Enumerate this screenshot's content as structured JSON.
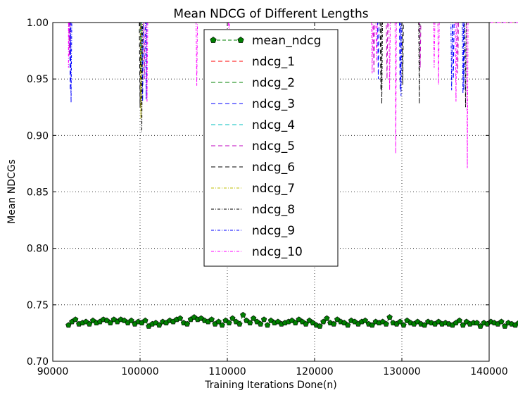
{
  "chart_data": {
    "type": "line",
    "title": "Mean NDCG of Different Lengths",
    "xlabel": "Training Iterations Done(n)",
    "ylabel": "Mean NDCGs",
    "xlim": [
      90000,
      140000
    ],
    "ylim": [
      0.7,
      1.0
    ],
    "x_ticks": [
      90000,
      100000,
      110000,
      120000,
      130000,
      140000
    ],
    "x_tick_labels": [
      "90000",
      "100000",
      "110000",
      "120000",
      "130000",
      "140000"
    ],
    "y_ticks": [
      0.7,
      0.75,
      0.8,
      0.85,
      0.9,
      0.95,
      1.0
    ],
    "y_tick_labels": [
      "0.70",
      "0.75",
      "0.80",
      "0.85",
      "0.90",
      "0.95",
      "1.00"
    ],
    "grid": true,
    "legend_position": "upper-center",
    "mean_ndcg": {
      "name": "mean_ndcg",
      "color": "#007f00",
      "x_start": 91800,
      "x_step": 400,
      "values": [
        0.732,
        0.735,
        0.737,
        0.733,
        0.734,
        0.735,
        0.733,
        0.736,
        0.734,
        0.735,
        0.737,
        0.736,
        0.734,
        0.737,
        0.735,
        0.737,
        0.736,
        0.734,
        0.736,
        0.733,
        0.735,
        0.734,
        0.736,
        0.731,
        0.733,
        0.734,
        0.732,
        0.735,
        0.734,
        0.736,
        0.735,
        0.737,
        0.738,
        0.734,
        0.733,
        0.737,
        0.739,
        0.737,
        0.738,
        0.736,
        0.735,
        0.737,
        0.733,
        0.735,
        0.732,
        0.736,
        0.734,
        0.738,
        0.735,
        0.733,
        0.741,
        0.736,
        0.734,
        0.738,
        0.735,
        0.733,
        0.737,
        0.732,
        0.736,
        0.734,
        0.735,
        0.733,
        0.734,
        0.735,
        0.736,
        0.734,
        0.737,
        0.735,
        0.733,
        0.736,
        0.734,
        0.732,
        0.731,
        0.735,
        0.738,
        0.734,
        0.733,
        0.737,
        0.735,
        0.734,
        0.732,
        0.736,
        0.735,
        0.733,
        0.735,
        0.736,
        0.733,
        0.732,
        0.735,
        0.734,
        0.735,
        0.733,
        0.739,
        0.734,
        0.733,
        0.735,
        0.732,
        0.736,
        0.734,
        0.733,
        0.735,
        0.733,
        0.732,
        0.735,
        0.734,
        0.733,
        0.735,
        0.733,
        0.734,
        0.733,
        0.732,
        0.734,
        0.736,
        0.732,
        0.735,
        0.733,
        0.734,
        0.734,
        0.731,
        0.734,
        0.733,
        0.735,
        0.734,
        0.733,
        0.735,
        0.731,
        0.734,
        0.733,
        0.732,
        0.734,
        0.733,
        0.734,
        0.732,
        0.733,
        0.731,
        0.734,
        0.733,
        0.735,
        0.732,
        0.733,
        0.735,
        0.732,
        0.734,
        0.726,
        0.731,
        0.734,
        0.735,
        0.733,
        0.732,
        0.734,
        0.735,
        0.733,
        0.732,
        0.734,
        0.733,
        0.731,
        0.734,
        0.732,
        0.733,
        0.734,
        0.731,
        0.733,
        0.729,
        0.73,
        0.731,
        0.73,
        0.736,
        0.732,
        0.731,
        0.733,
        0.734,
        0.731,
        0.732,
        0.73,
        0.733,
        0.731,
        0.73,
        0.732,
        0.731,
        0.733,
        0.73,
        0.732,
        0.733,
        0.731,
        0.733,
        0.732,
        0.731,
        0.73,
        0.732,
        0.733,
        0.731,
        0.73,
        0.732,
        0.73,
        0.731,
        0.729,
        0.731,
        0.733,
        0.731,
        0.729,
        0.735,
        0.731,
        0.732,
        0.729
      ]
    },
    "series": [
      {
        "name": "ndcg_1",
        "color": "#ff0000",
        "dash": "dashed",
        "dips": []
      },
      {
        "name": "ndcg_2",
        "color": "#008000",
        "dash": "dashed",
        "dips": []
      },
      {
        "name": "ndcg_3",
        "color": "#0000ff",
        "dash": "dashed",
        "dips": [
          [
            92000,
            0.94
          ],
          [
            100300,
            0.93
          ],
          [
            127300,
            0.95
          ],
          [
            129800,
            0.94
          ],
          [
            135900,
            0.95
          ],
          [
            137100,
            0.94
          ]
        ]
      },
      {
        "name": "ndcg_4",
        "color": "#00bfbf",
        "dash": "dashed",
        "dips": [
          [
            100100,
            0.955
          ]
        ]
      },
      {
        "name": "ndcg_5",
        "color": "#bf00bf",
        "dash": "dashed",
        "dips": [
          [
            91900,
            0.97
          ],
          [
            100500,
            0.95
          ],
          [
            126800,
            0.955
          ],
          [
            128300,
            0.95
          ],
          [
            132100,
            0.96
          ],
          [
            136400,
            0.955
          ]
        ]
      },
      {
        "name": "ndcg_6",
        "color": "#000000",
        "dash": "dashed",
        "dips": [
          [
            100000,
            0.925
          ],
          [
            127600,
            0.94
          ],
          [
            130100,
            0.945
          ]
        ]
      },
      {
        "name": "ndcg_7",
        "color": "#bfbf00",
        "dash": "dashdot",
        "dips": [
          [
            100100,
            0.915
          ]
        ]
      },
      {
        "name": "ndcg_8",
        "color": "#000000",
        "dash": "dashdot",
        "dips": [
          [
            100200,
            0.903
          ],
          [
            127700,
            0.928
          ],
          [
            132000,
            0.928
          ],
          [
            137300,
            0.925
          ]
        ]
      },
      {
        "name": "ndcg_9",
        "color": "#0000ff",
        "dash": "dashdot",
        "dips": [
          [
            92100,
            0.929
          ],
          [
            100700,
            0.932
          ],
          [
            129900,
            0.935
          ],
          [
            135700,
            0.94
          ],
          [
            137000,
            0.937
          ]
        ]
      },
      {
        "name": "ndcg_10",
        "color": "#ff00ff",
        "dash": "dashdot",
        "dips": [
          [
            91800,
            0.96
          ],
          [
            100800,
            0.93
          ],
          [
            106500,
            0.944
          ],
          [
            110200,
            0.97
          ],
          [
            126600,
            0.955
          ],
          [
            127100,
            0.965
          ],
          [
            128600,
            0.94
          ],
          [
            129300,
            0.884
          ],
          [
            133700,
            0.96
          ],
          [
            134200,
            0.945
          ],
          [
            136200,
            0.93
          ],
          [
            137500,
            0.871
          ]
        ]
      }
    ]
  }
}
